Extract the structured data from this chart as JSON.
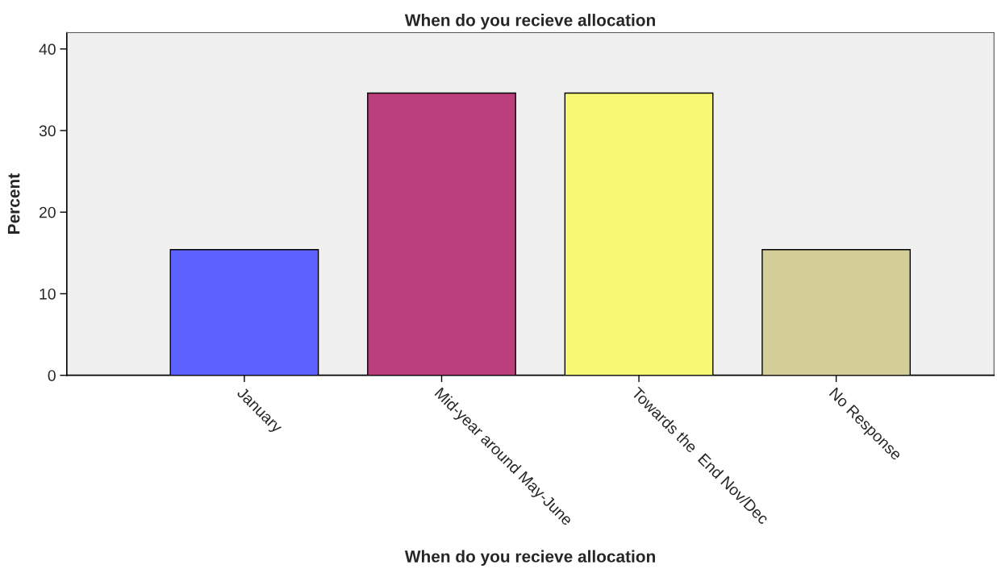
{
  "chart_data": {
    "type": "bar",
    "title": "When do you recieve allocation",
    "xlabel": "When do you recieve allocation",
    "ylabel": "Percent",
    "categories": [
      "January",
      "Mid-year around May-June",
      "Towards the  End Nov/Dec",
      "No Response"
    ],
    "values": [
      15.4,
      34.6,
      34.6,
      15.4
    ],
    "colors": [
      "#5d62ff",
      "#bb3f7c",
      "#f9f874",
      "#d3ce98"
    ],
    "ylim": [
      0,
      42
    ],
    "yticks": [
      0,
      10,
      20,
      30,
      40
    ],
    "grid": false,
    "legend": false
  }
}
